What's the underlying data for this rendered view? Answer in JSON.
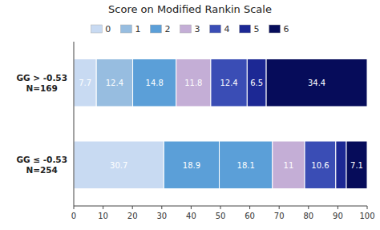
{
  "chart_data": {
    "type": "bar",
    "orientation": "horizontal",
    "stacked": true,
    "title": "Score on Modified Rankin Scale",
    "categories": [
      "GG > -0.53\nN=169",
      "GG ≤ -0.53\nN=254"
    ],
    "series": [
      {
        "name": "0",
        "color": "#c8daf2",
        "values": [
          7.7,
          30.7
        ]
      },
      {
        "name": "1",
        "color": "#97bde0",
        "colors": [
          "#97bde0",
          "#5b9fd8"
        ],
        "values": [
          12.4,
          18.9
        ]
      },
      {
        "name": "2",
        "color": "#5b9fd8",
        "values": [
          14.8,
          18.1
        ]
      },
      {
        "name": "3",
        "color": "#c4aed6",
        "values": [
          11.8,
          11.0
        ]
      },
      {
        "name": "4",
        "color": "#3a4db5",
        "values": [
          12.4,
          10.6
        ]
      },
      {
        "name": "5",
        "color": "#1c2894",
        "values": [
          6.5,
          3.6
        ],
        "value_labels": [
          "6.5",
          null
        ]
      },
      {
        "name": "6",
        "color": "#060c5a",
        "values": [
          34.4,
          7.1
        ]
      }
    ],
    "xlim": [
      0,
      100
    ],
    "xticks": [
      0,
      10,
      20,
      30,
      40,
      50,
      60,
      70,
      80,
      90,
      100
    ],
    "data_labels": true,
    "legend": "top",
    "grid": false
  }
}
